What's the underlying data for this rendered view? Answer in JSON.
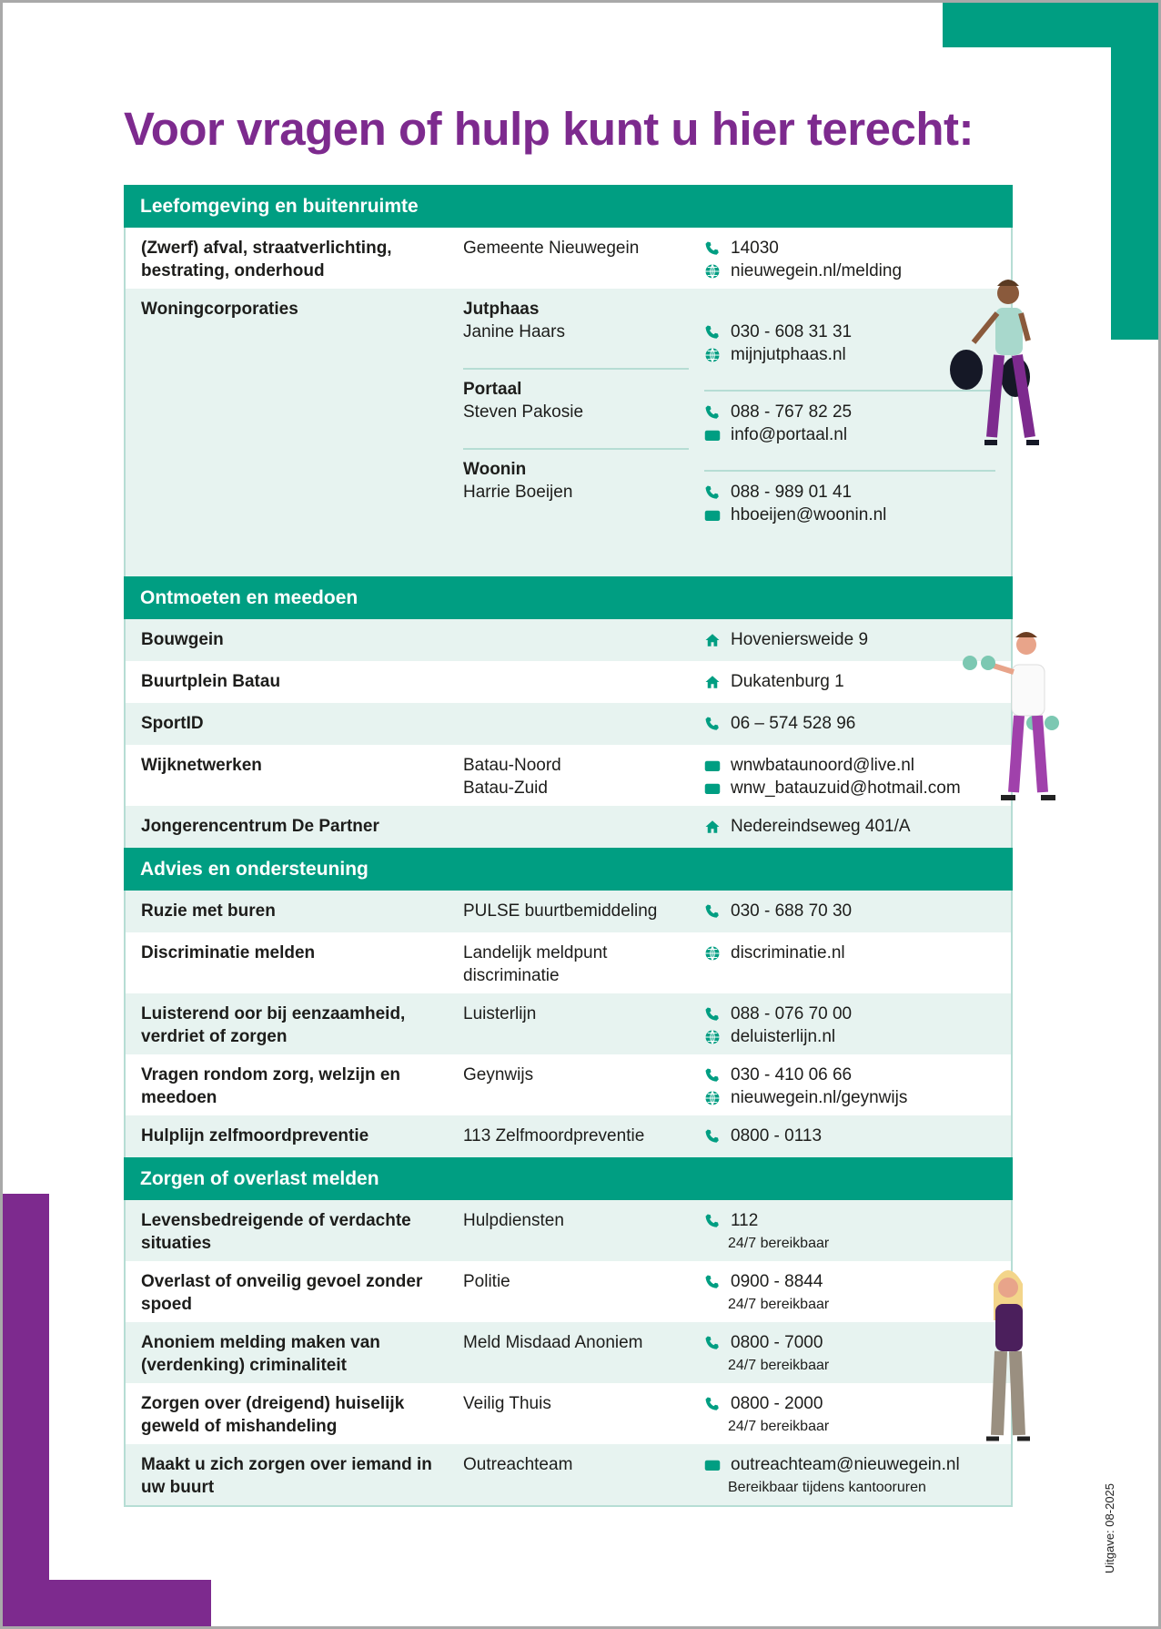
{
  "title": "Voor vragen of hulp kunt u hier terecht:",
  "colors": {
    "teal": "#009e82",
    "purple": "#7d2a8e",
    "row_light": "#e7f3f0",
    "border": "#b6ddd4"
  },
  "edition": "Uitgave: 08-2025",
  "sections": [
    {
      "title": "Leefomgeving en buitenruimte",
      "rows": [
        {
          "label": "(Zwerf) afval, straatverlichting, bestrating, onderhoud",
          "org": [
            "Gemeente Nieuwegein"
          ],
          "contacts": [
            {
              "icon": "phone-icon",
              "text": "14030"
            },
            {
              "icon": "globe-icon",
              "text": "nieuwegein.nl/melding"
            }
          ]
        },
        {
          "label": "Woningcorporaties",
          "groups": [
            {
              "name": "Jutphaas",
              "person": "Janine Haars",
              "contacts": [
                {
                  "icon": "phone-icon",
                  "text": "030 - 608 31 31"
                },
                {
                  "icon": "globe-icon",
                  "text": "mijnjutphaas.nl"
                }
              ]
            },
            {
              "name": "Portaal",
              "person": "Steven Pakosie",
              "contacts": [
                {
                  "icon": "mail-icon",
                  "text": "088 - 767 82 25"
                },
                {
                  "icon": "mail-icon",
                  "text": "info@portaal.nl"
                }
              ]
            },
            {
              "name": "Woonin",
              "person": "Harrie Boeijen",
              "contacts": [
                {
                  "icon": "phone-icon",
                  "text": "088 - 989 01 41"
                },
                {
                  "icon": "mail-icon",
                  "text": "hboeijen@woonin.nl"
                }
              ]
            }
          ]
        }
      ]
    },
    {
      "title": "Ontmoeten en meedoen",
      "rows": [
        {
          "label": "Bouwgein",
          "org": [],
          "contacts": [
            {
              "icon": "home-icon",
              "text": "Hoveniersweide 9"
            }
          ]
        },
        {
          "label": "Buurtplein Batau",
          "org": [],
          "contacts": [
            {
              "icon": "home-icon",
              "text": "Dukatenburg 1"
            }
          ]
        },
        {
          "label": "SportID",
          "org": [],
          "contacts": [
            {
              "icon": "phone-icon",
              "text": "06 – 574 528 96"
            }
          ]
        },
        {
          "label": "Wijknetwerken",
          "org": [
            "Batau-Noord",
            "Batau-Zuid"
          ],
          "contacts": [
            {
              "icon": "mail-icon",
              "text": "wnwbataunoord@live.nl"
            },
            {
              "icon": "mail-icon",
              "text": "wnw_batauzuid@hotmail.com"
            }
          ]
        },
        {
          "label": "Jongerencentrum De Partner",
          "org": [],
          "contacts": [
            {
              "icon": "home-icon",
              "text": "Nedereindseweg 401/A"
            }
          ]
        }
      ]
    },
    {
      "title": "Advies en ondersteuning",
      "rows": [
        {
          "label": "Ruzie met buren",
          "org": [
            "PULSE buurtbemiddeling"
          ],
          "contacts": [
            {
              "icon": "phone-icon",
              "text": "030 - 688 70 30"
            }
          ]
        },
        {
          "label": "Discriminatie melden",
          "org": [
            "Landelijk meldpunt",
            "discriminatie"
          ],
          "contacts": [
            {
              "icon": "globe-icon",
              "text": "discriminatie.nl"
            }
          ]
        },
        {
          "label": "Luisterend oor bij eenzaamheid, verdriet of zorgen",
          "org": [
            "Luisterlijn"
          ],
          "contacts": [
            {
              "icon": "phone-icon",
              "text": "088 - 076 70 00"
            },
            {
              "icon": "globe-icon",
              "text": "deluisterlijn.nl"
            }
          ]
        },
        {
          "label": "Vragen rondom zorg, welzijn en meedoen",
          "org": [
            "Geynwijs"
          ],
          "contacts": [
            {
              "icon": "phone-icon",
              "text": "030 - 410 06 66"
            },
            {
              "icon": "globe-icon",
              "text": "nieuwegein.nl/geynwijs"
            }
          ]
        },
        {
          "label": "Hulplijn zelfmoordpreventie",
          "org": [
            "113 Zelfmoordpreventie"
          ],
          "contacts": [
            {
              "icon": "phone-icon",
              "text": "0800 - 0113"
            }
          ]
        }
      ]
    },
    {
      "title": "Zorgen of overlast melden",
      "rows": [
        {
          "label": "Levensbedreigende of verdachte situaties",
          "org": [
            "Hulpdiensten"
          ],
          "contacts": [
            {
              "icon": "phone-icon",
              "text": "112"
            }
          ],
          "note": "24/7 bereikbaar"
        },
        {
          "label": "Overlast of onveilig gevoel zonder spoed",
          "org": [
            "Politie"
          ],
          "contacts": [
            {
              "icon": "phone-icon",
              "text": "0900 - 8844"
            }
          ],
          "note": "24/7 bereikbaar"
        },
        {
          "label": "Anoniem melding maken van (verdenking) criminaliteit",
          "org": [
            "Meld Misdaad Anoniem"
          ],
          "contacts": [
            {
              "icon": "phone-icon",
              "text": "0800 - 7000"
            }
          ],
          "note": "24/7 bereikbaar"
        },
        {
          "label": "Zorgen over (dreigend) huiselijk geweld of mishandeling",
          "org": [
            "Veilig Thuis"
          ],
          "contacts": [
            {
              "icon": "phone-icon",
              "text": "0800 - 2000"
            }
          ],
          "note": "24/7 bereikbaar"
        },
        {
          "label": "Maakt u zich zorgen over iemand in uw buurt",
          "org": [
            "Outreachteam"
          ],
          "contacts": [
            {
              "icon": "mail-icon",
              "text": "outreachteam@nieuwegein.nl"
            }
          ],
          "note": "Bereikbaar tijdens kantooruren"
        }
      ]
    }
  ]
}
